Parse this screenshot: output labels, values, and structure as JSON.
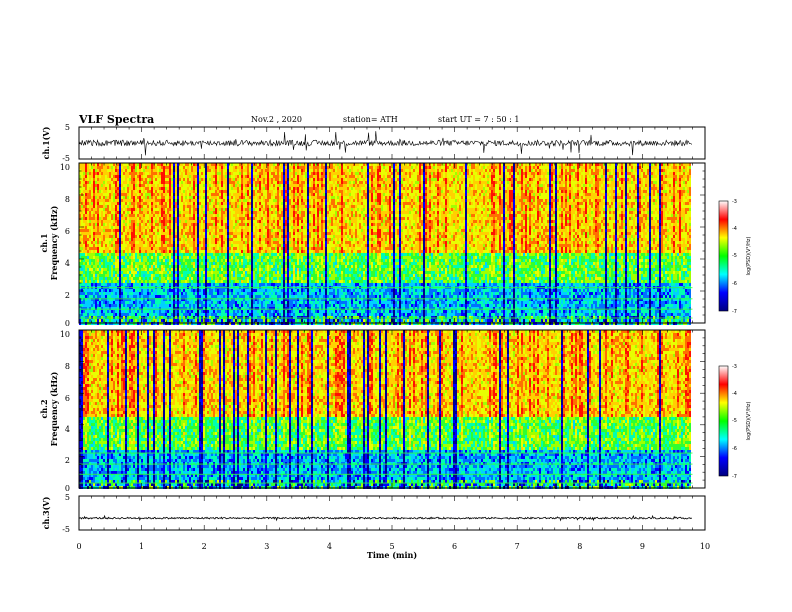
{
  "header": {
    "title": "VLF Spectra",
    "date": "Nov.2  , 2020",
    "station": "station= ATH",
    "start": "start  UT =   7 : 50 : 1"
  },
  "chart_data": [
    {
      "type": "line",
      "name": "waveform-ch1",
      "ylabel": "ch.1(V)",
      "ylim": [
        -5,
        5
      ],
      "yticks": [
        "5",
        "-5"
      ],
      "xlim": [
        0,
        10
      ],
      "baseline": 0,
      "noise": 0.9,
      "spike": 1.8
    },
    {
      "type": "heatmap",
      "name": "spectrogram-ch1",
      "ylabel_line1": "ch.1",
      "ylabel_line2": "Frequency  (kHz)",
      "ylim": [
        0,
        10
      ],
      "yticks": [
        "0",
        "2",
        "4",
        "6",
        "8",
        "10"
      ],
      "xlim": [
        0,
        10
      ],
      "data_end_min": 9.8,
      "colorbar": {
        "label": "log(PSD)(V²/Hz)",
        "range": [
          -7,
          -3
        ],
        "ticks": [
          "-3",
          "-4",
          "-5",
          "-6",
          "-7"
        ],
        "colors": [
          "#000080",
          "#0000ff",
          "#00ffff",
          "#00ff00",
          "#ffff00",
          "#ff0000",
          "#ffffff"
        ]
      }
    },
    {
      "type": "heatmap",
      "name": "spectrogram-ch2",
      "ylabel_line1": "ch.2",
      "ylabel_line2": "Frequency  (kHz)",
      "ylim": [
        0,
        10
      ],
      "yticks": [
        "0",
        "2",
        "4",
        "6",
        "8",
        "10"
      ],
      "xlim": [
        0,
        10
      ],
      "data_end_min": 9.8,
      "colorbar": {
        "label": "log(PSD)(V²/Hz)",
        "range": [
          -7,
          -3
        ],
        "ticks": [
          "-3",
          "-4",
          "-5",
          "-6",
          "-7"
        ],
        "colors": [
          "#000080",
          "#0000ff",
          "#00ffff",
          "#00ff00",
          "#ffff00",
          "#ff0000",
          "#ffffff"
        ]
      }
    },
    {
      "type": "line",
      "name": "waveform-ch3",
      "ylabel": "ch.3(V)",
      "ylim": [
        -5,
        5
      ],
      "yticks": [
        "5",
        "-5"
      ],
      "xlim": [
        0,
        10
      ],
      "baseline": -1.5,
      "noise": 0.25,
      "spike": 0.3
    }
  ],
  "xaxis": {
    "label": "Time  (min)",
    "ticks": [
      "0",
      "1",
      "2",
      "3",
      "4",
      "5",
      "6",
      "7",
      "8",
      "9",
      "10"
    ]
  }
}
